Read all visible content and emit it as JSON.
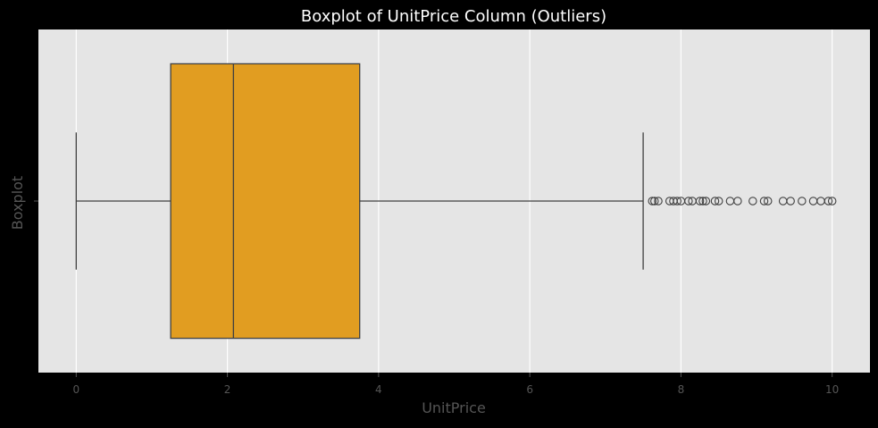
{
  "chart_data": {
    "type": "boxplot",
    "title": "Boxplot of UnitPrice Column (Outliers)",
    "xlabel": "UnitPrice",
    "ylabel": "Boxplot",
    "xlim": [
      -0.5,
      10.5
    ],
    "xticks": [
      0,
      2,
      4,
      6,
      8,
      10
    ],
    "xtick_labels": [
      "0",
      "2",
      "4",
      "6",
      "8",
      "10"
    ],
    "grid": true,
    "orientation": "horizontal",
    "box": {
      "whisker_low": 0.0,
      "q1": 1.25,
      "median": 2.08,
      "q3": 3.75,
      "whisker_high": 7.5,
      "outliers": [
        7.62,
        7.65,
        7.7,
        7.85,
        7.9,
        7.95,
        8.0,
        8.1,
        8.15,
        8.25,
        8.29,
        8.33,
        8.45,
        8.5,
        8.65,
        8.75,
        8.95,
        9.1,
        9.15,
        9.35,
        9.45,
        9.6,
        9.75,
        9.85,
        9.95,
        10.0
      ]
    },
    "colors": {
      "box_fill": "#E19D21",
      "line": "#404040",
      "plot_bg": "#E5E5E5",
      "figure_bg": "#000000",
      "grid": "#FFFFFF",
      "text": "#FFFFFF",
      "muted_text": "#555555"
    }
  }
}
